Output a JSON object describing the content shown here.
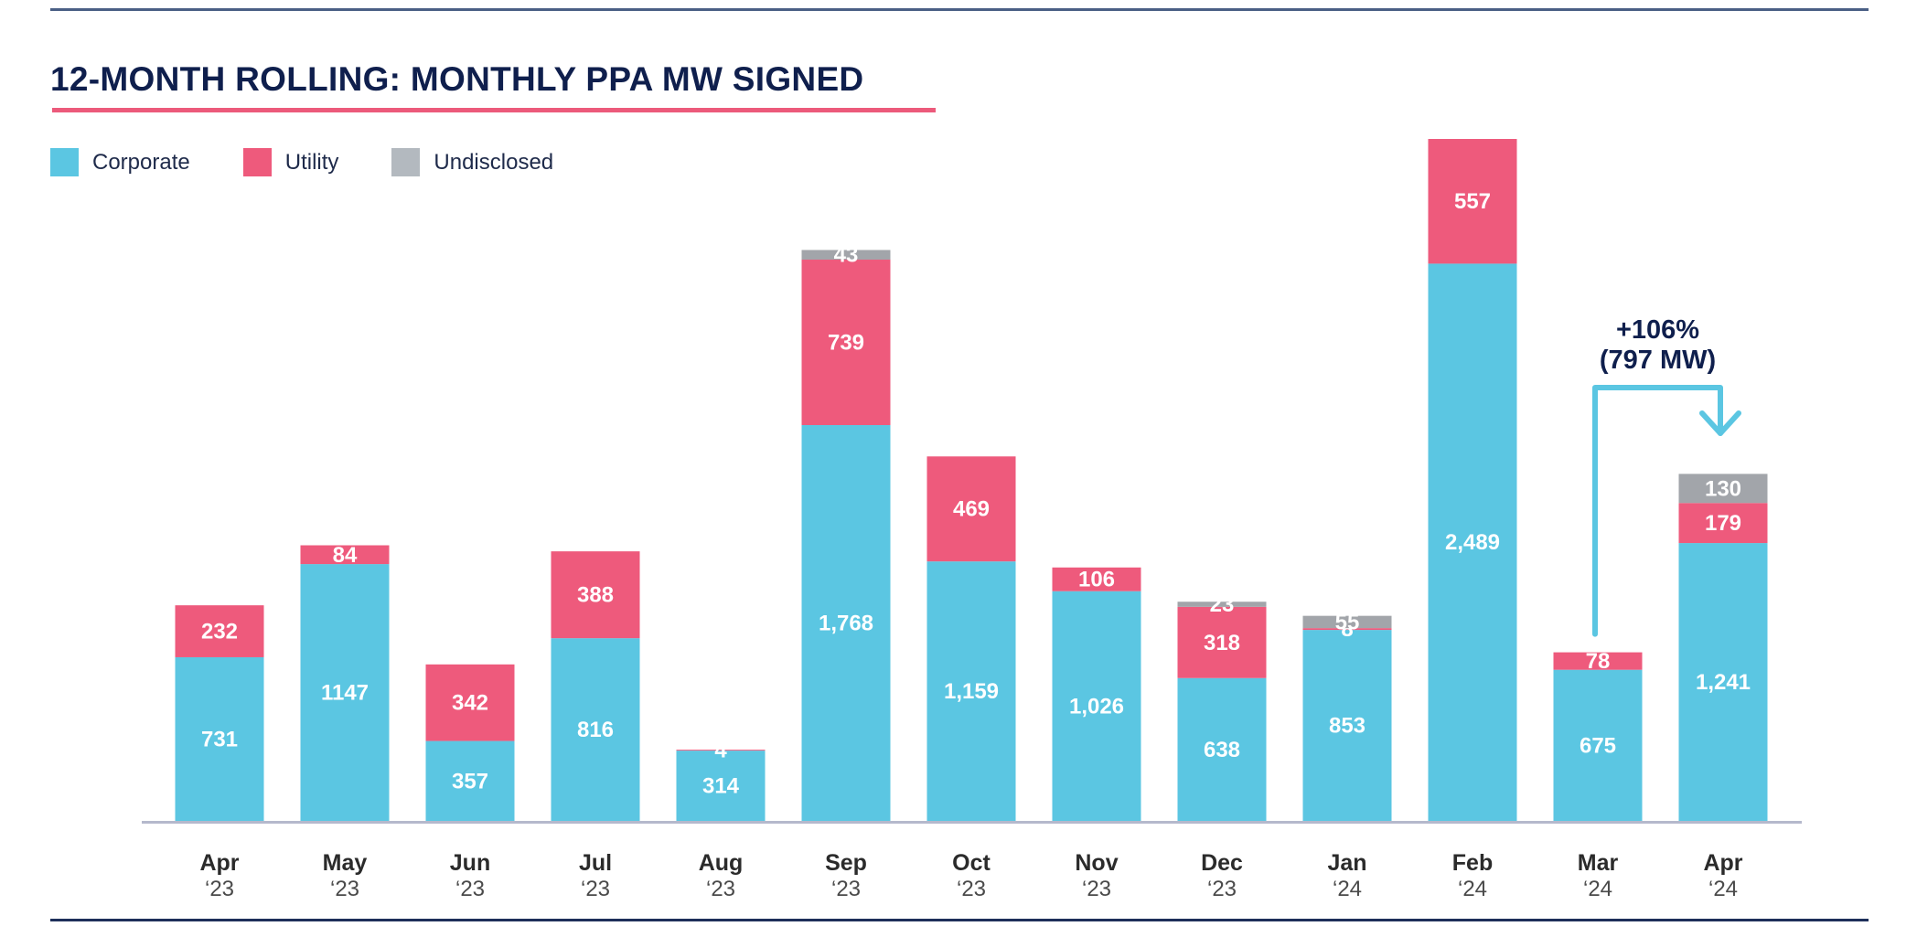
{
  "chart_data": {
    "type": "bar",
    "stacked": true,
    "title": "12-MONTH ROLLING: MONTHLY PPA MW SIGNED",
    "xlabel": "",
    "ylabel": "",
    "grid": false,
    "legend_position": "top-left",
    "categories": [
      {
        "month": "Apr",
        "year": "‘23"
      },
      {
        "month": "May",
        "year": "‘23"
      },
      {
        "month": "Jun",
        "year": "‘23"
      },
      {
        "month": "Jul",
        "year": "‘23"
      },
      {
        "month": "Aug",
        "year": "‘23"
      },
      {
        "month": "Sep",
        "year": "‘23"
      },
      {
        "month": "Oct",
        "year": "‘23"
      },
      {
        "month": "Nov",
        "year": "‘23"
      },
      {
        "month": "Dec",
        "year": "‘23"
      },
      {
        "month": "Jan",
        "year": "‘24"
      },
      {
        "month": "Feb",
        "year": "‘24"
      },
      {
        "month": "Mar",
        "year": "‘24"
      },
      {
        "month": "Apr",
        "year": "‘24"
      }
    ],
    "series": [
      {
        "name": "Corporate",
        "color": "#5bc6e2",
        "values": [
          731,
          1147,
          357,
          816,
          314,
          1768,
          1159,
          1026,
          638,
          853,
          2489,
          675,
          1241
        ],
        "labels": [
          "731",
          "1147",
          "357",
          "816",
          "314",
          "1,768",
          "1,159",
          "1,026",
          "638",
          "853",
          "2,489",
          "675",
          "1,241"
        ]
      },
      {
        "name": "Utility",
        "color": "#ee5a7c",
        "values": [
          232,
          84,
          342,
          388,
          4,
          739,
          469,
          106,
          318,
          8,
          557,
          78,
          179
        ],
        "labels": [
          "232",
          "84",
          "342",
          "388",
          "4",
          "739",
          "469",
          "106",
          "318",
          "8",
          "557",
          "78",
          "179"
        ]
      },
      {
        "name": "Undisclosed",
        "color": "#a2a5aa",
        "values": [
          0,
          0,
          0,
          0,
          0,
          43,
          0,
          0,
          23,
          55,
          0,
          0,
          130
        ],
        "labels": [
          "",
          "",
          "",
          "",
          "",
          "43",
          "",
          "",
          "23",
          "55",
          "",
          "",
          "130"
        ]
      }
    ],
    "ylim": [
      0,
      3100
    ],
    "annotation": {
      "line1": "+106%",
      "line2": "(797 MW)",
      "from_category_index": 11,
      "to_category_index": 12,
      "color": "#5bc6e2"
    }
  },
  "legend": [
    {
      "label": "Corporate",
      "color": "#5bc6e2"
    },
    {
      "label": "Utility",
      "color": "#ee5a7c"
    },
    {
      "label": "Undisclosed",
      "color": "#b3b9bf"
    }
  ],
  "colors": {
    "title": "#0f1f4d",
    "title_underline": "#ec5a7b",
    "rule": "#2a3d6b",
    "axis": "#b5b9cc"
  }
}
